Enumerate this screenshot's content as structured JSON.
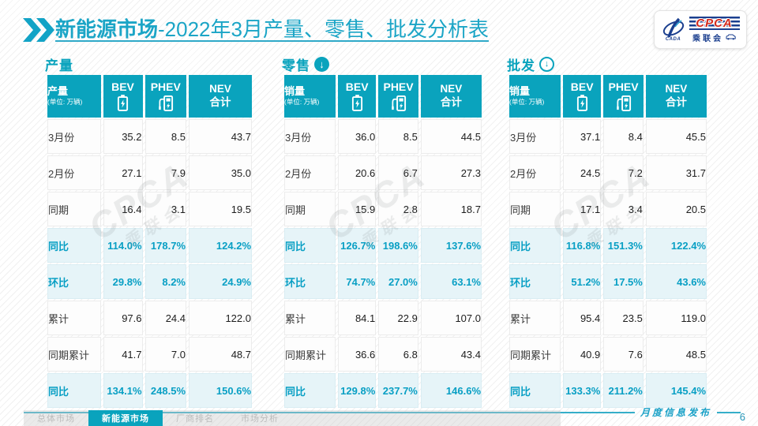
{
  "header": {
    "title_highlight": "新能源市场",
    "title_rest": "-2022年3月产量、零售、批发分析表"
  },
  "logo": {
    "swoosh_text": "CADA",
    "main": "CPCA",
    "sub": "乘联会"
  },
  "watermark": {
    "line1": "CPCA",
    "line2": "乘联会"
  },
  "table_columns": {
    "bev": "BEV",
    "phev": "PHEV",
    "nev_line1": "NEV",
    "nev_line2": "合计"
  },
  "tables": [
    {
      "id": "production",
      "section_title": "产量",
      "arrow": "none",
      "unit_label": "产量",
      "unit_sub": "(单位: 万辆)",
      "rows": [
        {
          "label": "3月份",
          "values": [
            "35.2",
            "8.5",
            "43.7"
          ],
          "highlight": false
        },
        {
          "label": "2月份",
          "values": [
            "27.1",
            "7.9",
            "35.0"
          ],
          "highlight": false
        },
        {
          "label": "同期",
          "values": [
            "16.4",
            "3.1",
            "19.5"
          ],
          "highlight": false
        },
        {
          "label": "同比",
          "values": [
            "114.0%",
            "178.7%",
            "124.2%"
          ],
          "highlight": true
        },
        {
          "label": "环比",
          "values": [
            "29.8%",
            "8.2%",
            "24.9%"
          ],
          "highlight": true
        },
        {
          "label": "累计",
          "values": [
            "97.6",
            "24.4",
            "122.0"
          ],
          "highlight": false
        },
        {
          "label": "同期累计",
          "values": [
            "41.7",
            "7.0",
            "48.7"
          ],
          "highlight": false
        },
        {
          "label": "同比",
          "values": [
            "134.1%",
            "248.5%",
            "150.6%"
          ],
          "highlight": true
        }
      ]
    },
    {
      "id": "retail",
      "section_title": "零售",
      "arrow": "filled",
      "unit_label": "销量",
      "unit_sub": "(单位: 万辆)",
      "rows": [
        {
          "label": "3月份",
          "values": [
            "36.0",
            "8.5",
            "44.5"
          ],
          "highlight": false
        },
        {
          "label": "2月份",
          "values": [
            "20.6",
            "6.7",
            "27.3"
          ],
          "highlight": false
        },
        {
          "label": "同期",
          "values": [
            "15.9",
            "2.8",
            "18.7"
          ],
          "highlight": false
        },
        {
          "label": "同比",
          "values": [
            "126.7%",
            "198.6%",
            "137.6%"
          ],
          "highlight": true
        },
        {
          "label": "环比",
          "values": [
            "74.7%",
            "27.0%",
            "63.1%"
          ],
          "highlight": true
        },
        {
          "label": "累计",
          "values": [
            "84.1",
            "22.9",
            "107.0"
          ],
          "highlight": false
        },
        {
          "label": "同期累计",
          "values": [
            "36.6",
            "6.8",
            "43.4"
          ],
          "highlight": false
        },
        {
          "label": "同比",
          "values": [
            "129.8%",
            "237.7%",
            "146.6%"
          ],
          "highlight": true
        }
      ]
    },
    {
      "id": "wholesale",
      "section_title": "批发",
      "arrow": "outline",
      "unit_label": "销量",
      "unit_sub": "(单位: 万辆)",
      "rows": [
        {
          "label": "3月份",
          "values": [
            "37.1",
            "8.4",
            "45.5"
          ],
          "highlight": false
        },
        {
          "label": "2月份",
          "values": [
            "24.5",
            "7.2",
            "31.7"
          ],
          "highlight": false
        },
        {
          "label": "同期",
          "values": [
            "17.1",
            "3.4",
            "20.5"
          ],
          "highlight": false
        },
        {
          "label": "同比",
          "values": [
            "116.8%",
            "151.3%",
            "122.4%"
          ],
          "highlight": true
        },
        {
          "label": "环比",
          "values": [
            "51.2%",
            "17.5%",
            "43.6%"
          ],
          "highlight": true
        },
        {
          "label": "累计",
          "values": [
            "95.4",
            "23.5",
            "119.0"
          ],
          "highlight": false
        },
        {
          "label": "同期累计",
          "values": [
            "40.9",
            "7.6",
            "48.5"
          ],
          "highlight": false
        },
        {
          "label": "同比",
          "values": [
            "133.3%",
            "211.2%",
            "145.4%"
          ],
          "highlight": true
        }
      ]
    }
  ],
  "footer": {
    "tabs": [
      {
        "label": "总体市场",
        "active": false
      },
      {
        "label": "新能源市场",
        "active": true
      },
      {
        "label": "厂商排名",
        "active": false
      },
      {
        "label": "市场分析",
        "active": false
      }
    ],
    "release_label": "月度信息发布",
    "page_number": "6"
  },
  "colors": {
    "teal": "#0aa3bd",
    "title_teal": "#1ba5c6",
    "highlight_bg": "#e6f4f8",
    "highlight_text": "#089fc4"
  }
}
